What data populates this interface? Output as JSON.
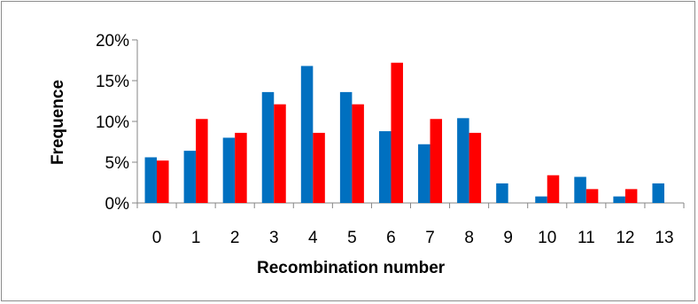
{
  "chart_data": {
    "type": "bar",
    "xlabel": "Recombination number",
    "ylabel": "Frequence",
    "categories": [
      "0",
      "1",
      "2",
      "3",
      "4",
      "5",
      "6",
      "7",
      "8",
      "9",
      "10",
      "11",
      "12",
      "13"
    ],
    "y_ticks": [
      "0%",
      "5%",
      "10%",
      "15%",
      "20%"
    ],
    "ylim": [
      0,
      20
    ],
    "y_unit": "%",
    "grid": false,
    "legend": "none",
    "series": [
      {
        "color": "#0070c0",
        "values": [
          5.6,
          6.4,
          8.0,
          13.6,
          16.8,
          13.6,
          8.8,
          7.2,
          10.4,
          2.4,
          0.8,
          3.2,
          0.8,
          2.4
        ]
      },
      {
        "color": "#ff0000",
        "values": [
          5.2,
          10.3,
          8.6,
          12.1,
          8.6,
          12.1,
          17.2,
          10.3,
          8.6,
          0,
          3.4,
          1.7,
          1.7,
          0
        ]
      }
    ]
  }
}
